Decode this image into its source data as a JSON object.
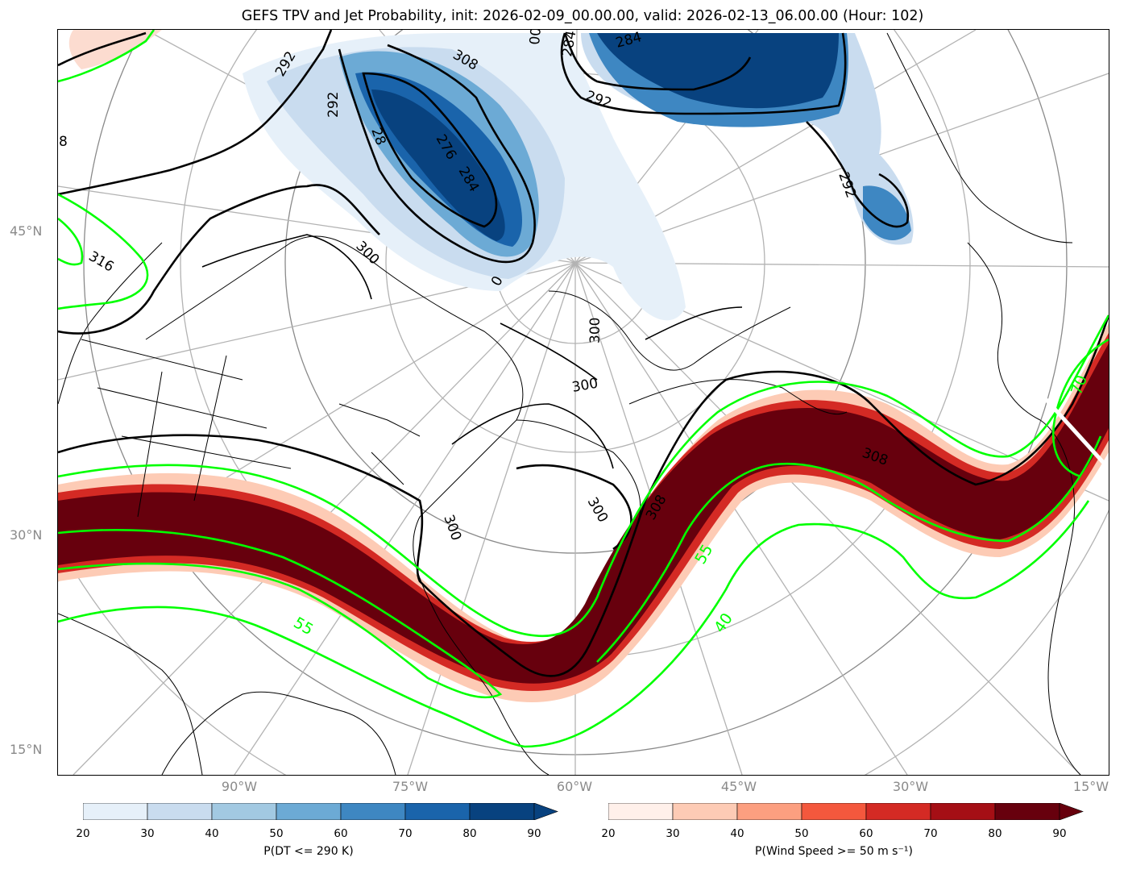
{
  "title": "GEFS TPV and Jet Probability, init: 2026-02-09_00.00.00, valid: 2026-02-13_06.00.00 (Hour: 102)",
  "lat_labels": [
    "45°N",
    "30°N",
    "15°N"
  ],
  "lon_labels": [
    "90°W",
    "75°W",
    "60°W",
    "45°W",
    "30°W",
    "15°W"
  ],
  "contour_labels": {
    "theta": [
      "292",
      "308",
      "00",
      "284",
      "284",
      "292",
      "292",
      "292",
      "28",
      "276",
      "284",
      "300",
      "316",
      "300",
      "300",
      "300",
      "300",
      "308",
      "308",
      "8",
      "0"
    ],
    "wind": [
      "70",
      "55",
      "55",
      "40"
    ]
  },
  "colorbar_tpv": {
    "label": "P(DT <= 290 K)",
    "ticks": [
      "20",
      "30",
      "40",
      "50",
      "60",
      "70",
      "80",
      "90"
    ],
    "colors": [
      "#e6f0f9",
      "#c9dcef",
      "#a2c9e2",
      "#6caad5",
      "#3e87c2",
      "#1a64ab",
      "#08427f"
    ]
  },
  "colorbar_jet": {
    "label": "P(Wind Speed >= 50 m s⁻¹)",
    "ticks": [
      "20",
      "30",
      "40",
      "50",
      "60",
      "70",
      "80",
      "90"
    ],
    "colors": [
      "#fff0ea",
      "#fdcbb5",
      "#fc9f80",
      "#f4583d",
      "#d42a24",
      "#a50f15",
      "#67000d"
    ]
  },
  "colors": {
    "wind_contour": "#00ff00",
    "theta_contour": "#000000",
    "graticule": "#b3b3b3",
    "axis_label": "#8a8a8a"
  }
}
